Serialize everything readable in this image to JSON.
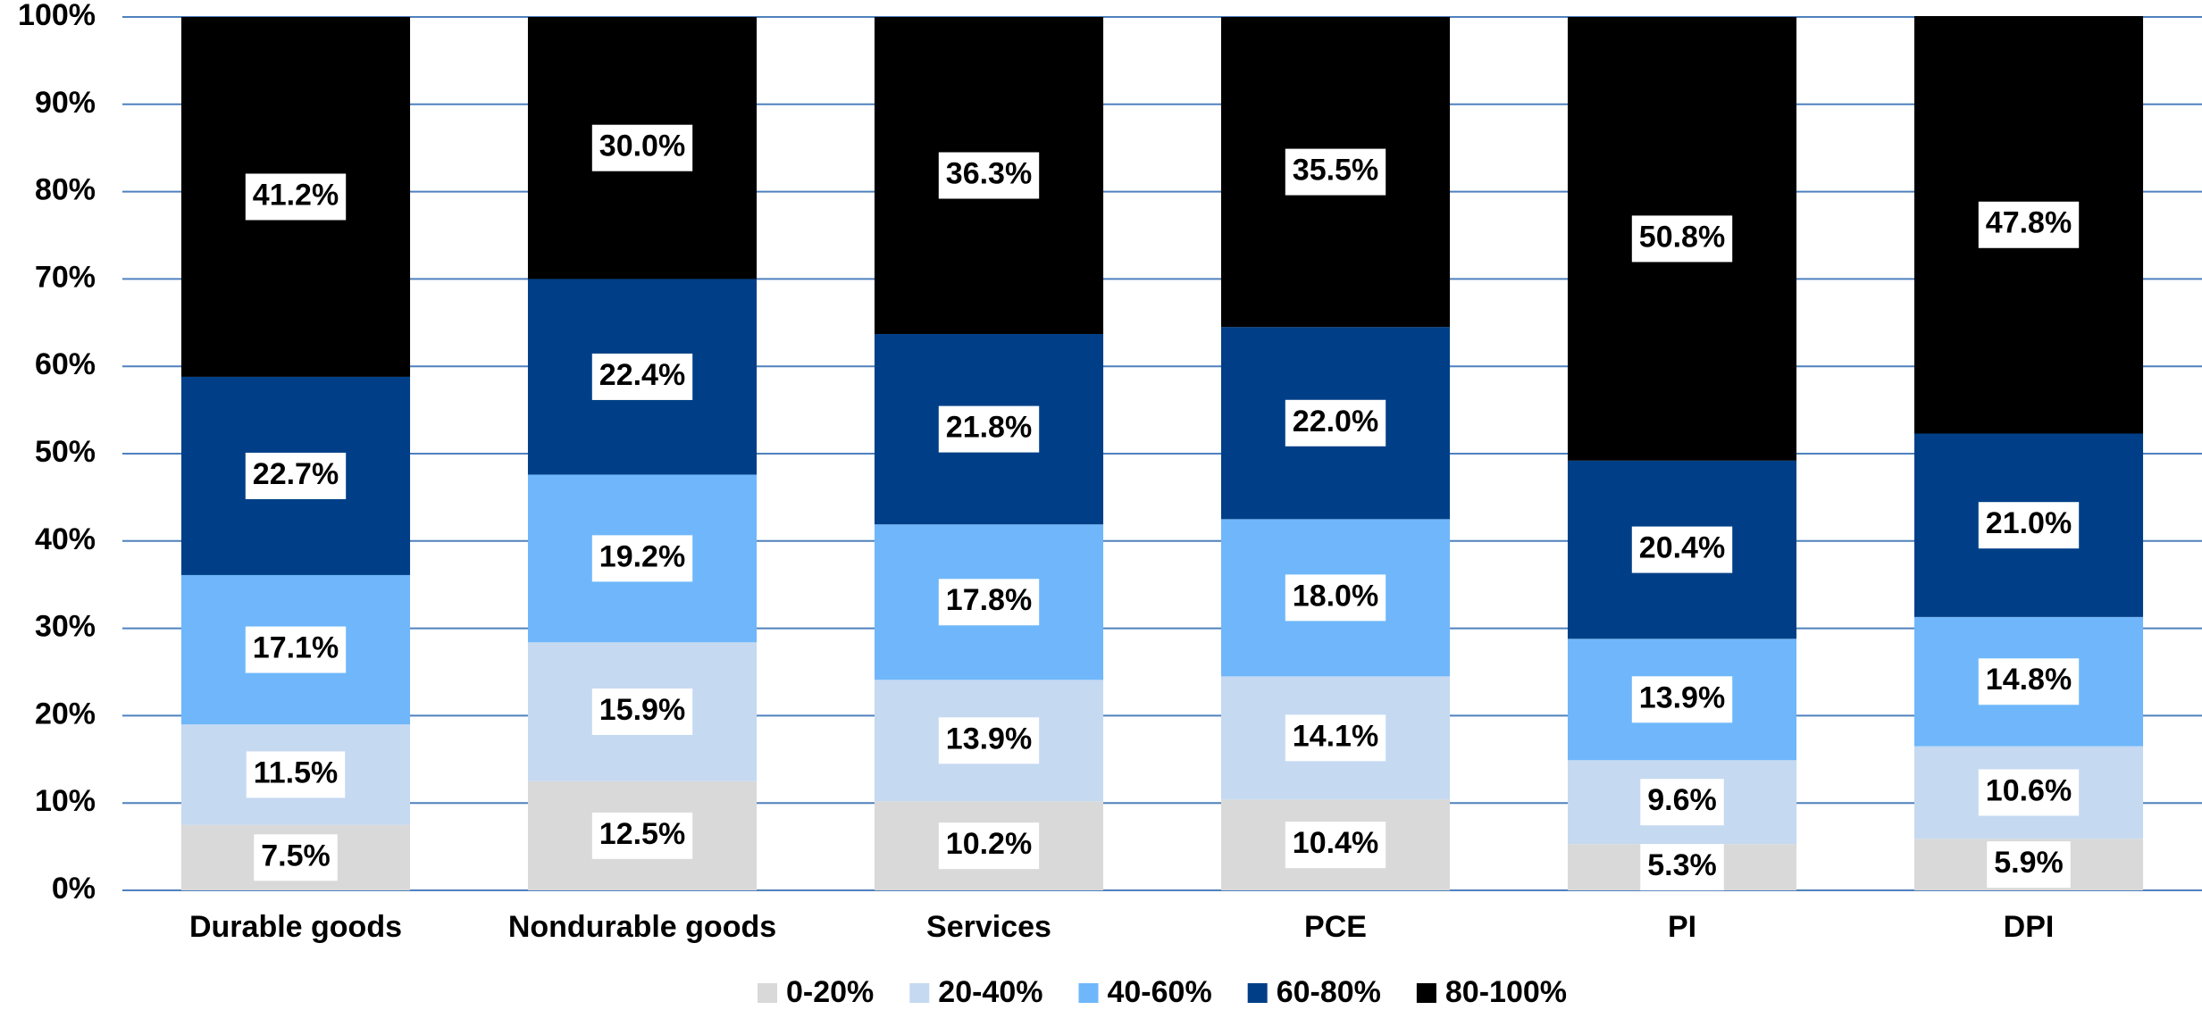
{
  "chart_data": {
    "type": "stacked_bar",
    "categories": [
      "Durable goods",
      "Nondurable goods",
      "Services",
      "PCE",
      "PI",
      "DPI"
    ],
    "series": [
      {
        "name": "0-20%",
        "color": "#d9d9d9",
        "values": [
          7.5,
          12.5,
          10.2,
          10.4,
          5.3,
          5.9
        ],
        "value_labels": [
          "7.5%",
          "12.5%",
          "10.2%",
          "10.4%",
          "5.3%",
          "5.9%"
        ]
      },
      {
        "name": "20-40%",
        "color": "#c5d9f1",
        "values": [
          11.5,
          15.9,
          13.9,
          14.1,
          9.6,
          10.6
        ],
        "value_labels": [
          "11.5%",
          "15.9%",
          "13.9%",
          "14.1%",
          "9.6%",
          "10.6%"
        ]
      },
      {
        "name": "40-60%",
        "color": "#6fb7fa",
        "values": [
          17.1,
          19.2,
          17.8,
          18.0,
          13.9,
          14.8
        ],
        "value_labels": [
          "17.1%",
          "19.2%",
          "17.8%",
          "18.0%",
          "13.9%",
          "14.8%"
        ]
      },
      {
        "name": "60-80%",
        "color": "#003f87",
        "values": [
          22.7,
          22.4,
          21.8,
          22.0,
          20.4,
          21.0
        ],
        "value_labels": [
          "22.7%",
          "22.4%",
          "21.8%",
          "22.0%",
          "20.4%",
          "21.0%"
        ]
      },
      {
        "name": "80-100%",
        "color": "#000000",
        "values": [
          41.2,
          30.0,
          36.3,
          35.5,
          50.8,
          47.8
        ],
        "value_labels": [
          "41.2%",
          "30.0%",
          "36.3%",
          "35.5%",
          "50.8%",
          "47.8%"
        ]
      }
    ],
    "ylim": [
      0,
      100
    ],
    "yticks": [
      {
        "value": 0,
        "label": "0%"
      },
      {
        "value": 10,
        "label": "10%"
      },
      {
        "value": 20,
        "label": "20%"
      },
      {
        "value": 30,
        "label": "30%"
      },
      {
        "value": 40,
        "label": "40%"
      },
      {
        "value": 50,
        "label": "50%"
      },
      {
        "value": 60,
        "label": "60%"
      },
      {
        "value": 70,
        "label": "70%"
      },
      {
        "value": 80,
        "label": "80%"
      },
      {
        "value": 90,
        "label": "90%"
      },
      {
        "value": 100,
        "label": "100%"
      }
    ],
    "grid": true,
    "legend": "bottom"
  }
}
